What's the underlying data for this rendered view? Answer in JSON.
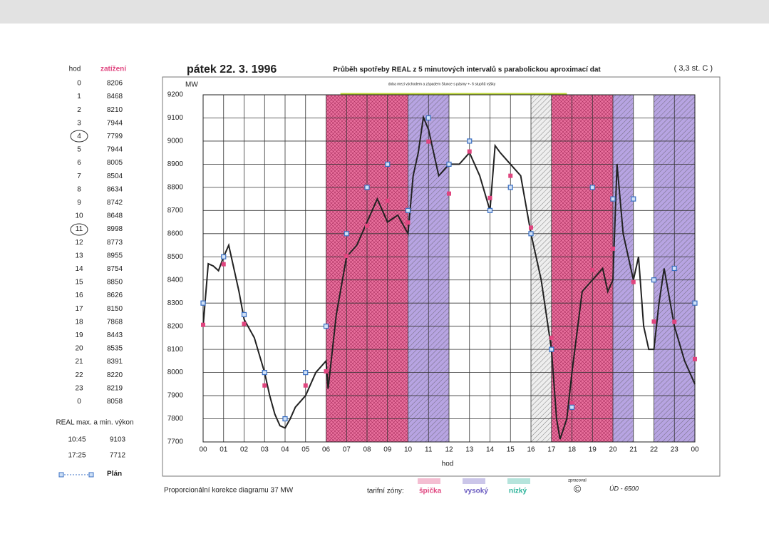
{
  "chart_data": {
    "type": "line",
    "date_title": "pátek  22. 3. 1996",
    "title": "Průběh spotřeby REAL z 5 minutových intervalů s parabolickou aproximací dat",
    "temperature": "( 3,3 st. C )",
    "y_unit": "MW",
    "x_label": "hod",
    "sun_note": "doba mezi východem a západem Slunce s pásmy +- 6 stupňů výšky",
    "sun_band": [
      6.7,
      17.75
    ],
    "xlim": [
      0,
      24
    ],
    "ylim": [
      7700,
      9200
    ],
    "xticks": [
      {
        "value": 0,
        "label": "00"
      },
      {
        "value": 1,
        "label": "01"
      },
      {
        "value": 2,
        "label": "02"
      },
      {
        "value": 3,
        "label": "03"
      },
      {
        "value": 4,
        "label": "04"
      },
      {
        "value": 5,
        "label": "05"
      },
      {
        "value": 6,
        "label": "06"
      },
      {
        "value": 7,
        "label": "07"
      },
      {
        "value": 8,
        "label": "08"
      },
      {
        "value": 9,
        "label": "09"
      },
      {
        "value": 10,
        "label": "10"
      },
      {
        "value": 11,
        "label": "11"
      },
      {
        "value": 12,
        "label": "12"
      },
      {
        "value": 13,
        "label": "13"
      },
      {
        "value": 14,
        "label": "14"
      },
      {
        "value": 15,
        "label": "15"
      },
      {
        "value": 16,
        "label": "16"
      },
      {
        "value": 17,
        "label": "17"
      },
      {
        "value": 18,
        "label": "18"
      },
      {
        "value": 19,
        "label": "19"
      },
      {
        "value": 20,
        "label": "20"
      },
      {
        "value": 21,
        "label": "21"
      },
      {
        "value": 22,
        "label": "22"
      },
      {
        "value": 23,
        "label": "23"
      },
      {
        "value": 24,
        "label": "00"
      }
    ],
    "yticks": [
      7700,
      7800,
      7900,
      8000,
      8100,
      8200,
      8300,
      8400,
      8500,
      8600,
      8700,
      8800,
      8900,
      9000,
      9100,
      9200
    ],
    "grid": true,
    "zones": [
      {
        "from": 6,
        "to": 10,
        "color": "#e2407c"
      },
      {
        "from": 10,
        "to": 12,
        "color": "#9f86d8"
      },
      {
        "from": 16,
        "to": 17,
        "color": "#8a8a8a"
      },
      {
        "from": 17,
        "to": 20,
        "color": "#e2407c"
      },
      {
        "from": 20,
        "to": 21,
        "color": "#9f86d8"
      },
      {
        "from": 22,
        "to": 24,
        "color": "#9f86d8"
      }
    ],
    "series": [
      {
        "name": "REAL",
        "color": "#222222",
        "style": "line",
        "x": [
          0,
          0.25,
          0.5,
          0.75,
          1,
          1.25,
          1.5,
          1.75,
          2,
          2.5,
          3,
          3.25,
          3.5,
          3.75,
          4,
          4.25,
          4.5,
          5,
          5.5,
          6,
          6.1,
          6.5,
          7,
          7.5,
          8,
          8.5,
          9,
          9.5,
          10,
          10.25,
          10.5,
          10.75,
          11,
          11.25,
          11.5,
          12,
          12.5,
          13,
          13.5,
          14,
          14.25,
          14.5,
          15,
          15.5,
          16,
          16.5,
          17,
          17.25,
          17.42,
          17.75,
          18,
          18.5,
          19,
          19.5,
          19.75,
          20,
          20.2,
          20.5,
          21,
          21.25,
          21.5,
          21.75,
          22,
          22.25,
          22.5,
          23,
          23.5,
          24
        ],
        "values": [
          8200,
          8470,
          8460,
          8440,
          8500,
          8550,
          8450,
          8350,
          8230,
          8150,
          8000,
          7900,
          7820,
          7770,
          7760,
          7800,
          7850,
          7900,
          8000,
          8050,
          7930,
          8250,
          8500,
          8550,
          8650,
          8750,
          8650,
          8680,
          8600,
          8850,
          8950,
          9103,
          9050,
          8950,
          8850,
          8900,
          8900,
          8950,
          8850,
          8700,
          8980,
          8950,
          8900,
          8850,
          8600,
          8400,
          8100,
          7800,
          7712,
          7800,
          8000,
          8350,
          8400,
          8450,
          8350,
          8400,
          8900,
          8600,
          8400,
          8500,
          8200,
          8100,
          8100,
          8300,
          8450,
          8200,
          8050,
          7950
        ]
      },
      {
        "name": "zatížení",
        "color": "#e0457f",
        "style": "dot",
        "x": [
          0,
          1,
          2,
          3,
          4,
          5,
          6,
          7,
          8,
          9,
          10,
          11,
          12,
          13,
          14,
          15,
          16,
          17,
          18,
          19,
          20,
          21,
          22,
          23,
          24
        ],
        "values": [
          8206,
          8468,
          8210,
          7944,
          7799,
          7944,
          8005,
          8504,
          8634,
          8742,
          8648,
          8998,
          8773,
          8955,
          8754,
          8850,
          8626,
          8150,
          7868,
          8443,
          8535,
          8391,
          8220,
          8219,
          8058
        ]
      },
      {
        "name": "Plán",
        "color": "#3a6fc4",
        "style": "square",
        "x": [
          0,
          1,
          2,
          3,
          4,
          5,
          6,
          7,
          8,
          9,
          10,
          11,
          12,
          13,
          14,
          15,
          16,
          17,
          18,
          19,
          20,
          21,
          22,
          23,
          24
        ],
        "values": [
          8300,
          8500,
          8250,
          8000,
          7800,
          8000,
          8200,
          8600,
          8800,
          8900,
          8700,
          9100,
          8900,
          9000,
          8700,
          8800,
          8600,
          8100,
          7850,
          8800,
          8750,
          8750,
          8400,
          8450,
          8300
        ]
      }
    ],
    "table_header": [
      "hod",
      "zatížení"
    ],
    "table_hours": [
      "0",
      "1",
      "2",
      "3",
      "4",
      "5",
      "6",
      "7",
      "8",
      "9",
      "10",
      "11",
      "12",
      "13",
      "14",
      "15",
      "16",
      "17",
      "18",
      "19",
      "20",
      "21",
      "22",
      "23",
      "0"
    ],
    "extremes_title": "REAL max. a min. výkon",
    "extremes": [
      [
        "10:45",
        "9103"
      ],
      [
        "17:25",
        "7712"
      ]
    ],
    "correction_note": "Proporcionální korekce diagramu  37 MW",
    "tariff_label": "tarifní zóny:",
    "tariff_names": [
      {
        "text": "špička",
        "color": "#e0457f"
      },
      {
        "text": "vysoký",
        "color": "#6a5bc0"
      },
      {
        "text": "nízký",
        "color": "#2bb39a"
      }
    ],
    "processed": "zpracoval",
    "copyright": "©",
    "code": "ÚD - 6500"
  }
}
